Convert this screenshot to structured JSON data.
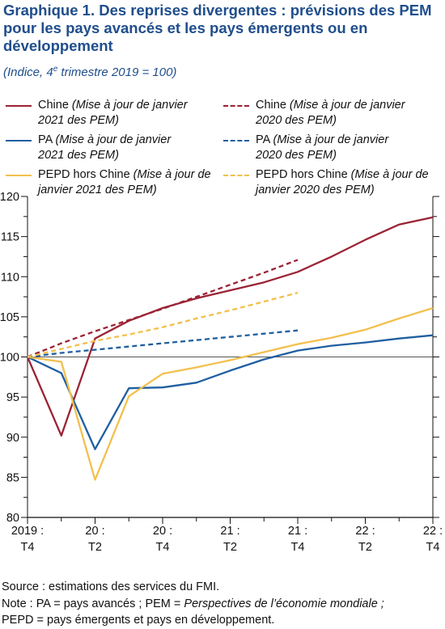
{
  "title": "Graphique 1.  Des reprises divergentes : prévisions des PEM pour les pays avancés et les pays émergents ou en développement",
  "subtitle": {
    "pre": "(Indice, 4",
    "sup": "e",
    "post": " trimestre 2019 = 100)"
  },
  "legend": [
    {
      "id": "chine21",
      "name": "Chine ",
      "note": "(Mise à jour de janvier 2021 des PEM)",
      "color": "#9b2335",
      "dashed": false
    },
    {
      "id": "pa21",
      "name": "PA ",
      "note": "(Mise à jour de janvier 2021 des PEM)",
      "color": "#1f5fa0",
      "dashed": false
    },
    {
      "id": "pepd21",
      "name": "PEPD hors Chine ",
      "note": "(Mise à jour de janvier 2021 des PEM)",
      "color": "#f2c04d",
      "dashed": false
    },
    {
      "id": "chine20",
      "name": "Chine ",
      "note": "(Mise à jour de janvier 2020 des PEM)",
      "color": "#9b2335",
      "dashed": true
    },
    {
      "id": "pa20",
      "name": "PA ",
      "note": "(Mise à jour de janvier 2020 des PEM)",
      "color": "#1f5fa0",
      "dashed": true
    },
    {
      "id": "pepd20",
      "name": "PEPD hors Chine ",
      "note": "(Mise à jour de janvier 2020 des PEM)",
      "color": "#f2c04d",
      "dashed": true
    }
  ],
  "chart_data": {
    "type": "line",
    "ylim": [
      80,
      120
    ],
    "yticks": [
      80,
      85,
      90,
      95,
      100,
      105,
      110,
      115,
      120
    ],
    "x_tick_labels": [
      {
        "top": "2019 :",
        "bottom": "T4"
      },
      {
        "top": "20 :",
        "bottom": "T2"
      },
      {
        "top": "20 :",
        "bottom": "T4"
      },
      {
        "top": "21 :",
        "bottom": "T2"
      },
      {
        "top": "21 :",
        "bottom": "T4"
      },
      {
        "top": "22 :",
        "bottom": "T2"
      },
      {
        "top": "22 :",
        "bottom": "T4"
      }
    ],
    "x_quarters": 12,
    "reference_line": 100,
    "series": [
      {
        "id": "chine21",
        "color": "#9b2335",
        "dashed": false,
        "values": [
          100,
          90.2,
          102.3,
          104.5,
          106.1,
          107.3,
          108.3,
          109.3,
          110.6,
          112.5,
          114.6,
          116.5,
          117.4
        ]
      },
      {
        "id": "pa21",
        "color": "#1f5fa0",
        "dashed": false,
        "values": [
          100,
          98.0,
          88.5,
          96.1,
          96.2,
          96.8,
          98.3,
          99.7,
          100.8,
          101.4,
          101.8,
          102.3,
          102.7
        ]
      },
      {
        "id": "pepd21",
        "color": "#f2c04d",
        "dashed": false,
        "values": [
          100,
          99.4,
          84.7,
          95.1,
          97.9,
          98.7,
          99.6,
          100.6,
          101.6,
          102.4,
          103.4,
          104.8,
          106.1
        ]
      },
      {
        "id": "chine20",
        "color": "#9b2335",
        "dashed": true,
        "values": [
          100,
          101.7,
          103.2,
          104.6,
          106.0,
          107.5,
          109.0,
          110.5,
          112.1
        ]
      },
      {
        "id": "pa20",
        "color": "#1f5fa0",
        "dashed": true,
        "values": [
          100,
          100.5,
          100.9,
          101.3,
          101.7,
          102.1,
          102.5,
          102.9,
          103.3
        ]
      },
      {
        "id": "pepd20",
        "color": "#f2c04d",
        "dashed": true,
        "values": [
          100,
          101.0,
          102.0,
          102.8,
          103.7,
          104.8,
          105.8,
          106.9,
          108.0
        ]
      }
    ]
  },
  "source": {
    "line1": "Source : estimations des services du FMI.",
    "line2_pre": "Note : PA = pays avancés ; PEM = ",
    "line2_em": "Perspectives de l’économie mondiale ;",
    "line3": "PEPD = pays émergents et pays en développement."
  }
}
